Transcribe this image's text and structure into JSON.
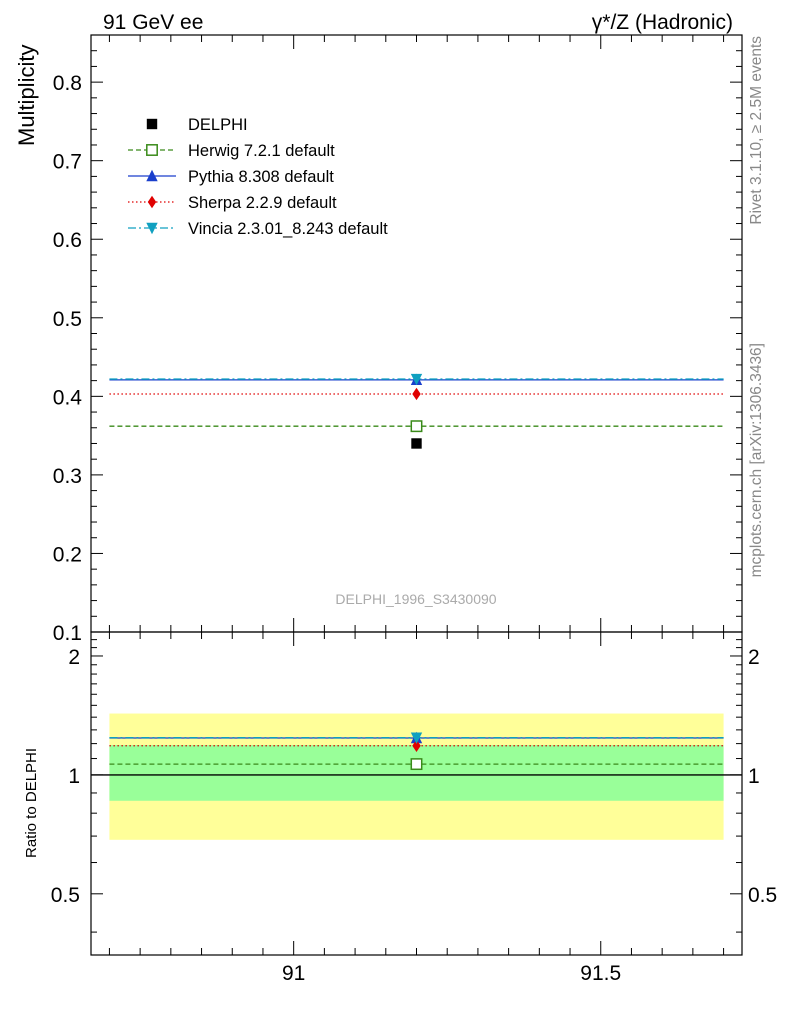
{
  "header": {
    "left_title": "91 GeV ee",
    "right_title": "γ*/Z (Hadronic)"
  },
  "side_labels": {
    "rivet": "Rivet 3.1.10, ≥ 2.5M events",
    "mcplots": "mcplots.cern.ch [arXiv:1306.3436]"
  },
  "watermark": "DELPHI_1996_S3430090",
  "chart_data": [
    {
      "type": "scatter",
      "panel": "main",
      "ylabel": "Multiplicity",
      "xlim": [
        90.67,
        91.73
      ],
      "ylim": [
        0.1,
        0.86
      ],
      "y_ticks": [
        0.1,
        0.2,
        0.3,
        0.4,
        0.5,
        0.6,
        0.7,
        0.8
      ],
      "y_tick_labels": [
        "0.1",
        "0.2",
        "0.3",
        "0.4",
        "0.5",
        "0.6",
        "0.7",
        "0.8"
      ],
      "bin": [
        90.7,
        91.7
      ],
      "x_point": 91.2,
      "data": {
        "name": "DELPHI",
        "value": 0.34,
        "color": "#000000"
      },
      "series": [
        {
          "name": "Herwig 7.2.1 default",
          "value": 0.362,
          "color": "#3a8a1a",
          "dash": "5,3",
          "marker": "square-open"
        },
        {
          "name": "Pythia 8.308 default",
          "value": 0.421,
          "color": "#1a3fcc",
          "dash": "",
          "marker": "triangle-up"
        },
        {
          "name": "Sherpa 2.2.9 default",
          "value": 0.403,
          "color": "#e00000",
          "dash": "1.5,2.5",
          "marker": "diamond"
        },
        {
          "name": "Vincia 2.3.01_8.243 default",
          "value": 0.422,
          "color": "#10a0c0",
          "dash": "8,3,2,3",
          "marker": "triangle-down"
        }
      ],
      "legend_position": "top-left"
    },
    {
      "type": "scatter",
      "panel": "ratio",
      "ylabel": "Ratio to DELPHI",
      "xlim": [
        90.67,
        91.73
      ],
      "ylim": [
        0.35,
        2.3
      ],
      "log_y": true,
      "y_ticks": [
        0.5,
        1,
        2
      ],
      "y_tick_labels": [
        "0.5",
        "1",
        "2"
      ],
      "x_ticks": [
        91,
        91.5
      ],
      "x_tick_labels": [
        "91",
        "91.5"
      ],
      "bands": [
        {
          "name": "total uncertainty",
          "low": 0.685,
          "high": 1.43,
          "color": "#ffff99"
        },
        {
          "name": "statistical uncertainty",
          "low": 0.86,
          "high": 1.19,
          "color": "#99ff99"
        }
      ],
      "series": [
        {
          "name": "Herwig 7.2.1 default",
          "value": 1.065
        },
        {
          "name": "Pythia 8.308 default",
          "value": 1.24
        },
        {
          "name": "Sherpa 2.2.9 default",
          "value": 1.185
        },
        {
          "name": "Vincia 2.3.01_8.243 default",
          "value": 1.242
        }
      ]
    }
  ]
}
